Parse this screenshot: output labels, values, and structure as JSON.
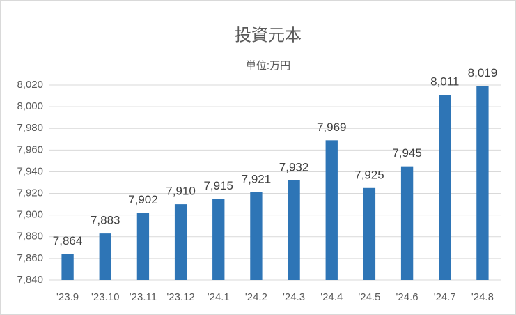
{
  "chart_data": {
    "type": "bar",
    "title": "投資元本",
    "subtitle": "単位:万円",
    "categories": [
      "'23.9",
      "'23.10",
      "'23.11",
      "'23.12",
      "'24.1",
      "'24.2",
      "'24.3",
      "'24.4",
      "'24.5",
      "'24.6",
      "'24.7",
      "'24.8"
    ],
    "values": [
      7864,
      7883,
      7902,
      7910,
      7915,
      7921,
      7932,
      7969,
      7925,
      7945,
      8011,
      8019
    ],
    "value_labels": [
      "7,864",
      "7,883",
      "7,902",
      "7,910",
      "7,915",
      "7,921",
      "7,932",
      "7,969",
      "7,925",
      "7,945",
      "8,011",
      "8,019"
    ],
    "color": "#2e75b6",
    "ylim": [
      7840,
      8020
    ],
    "yticks": [
      {
        "value": 7840,
        "label": "7,840"
      },
      {
        "value": 7860,
        "label": "7,860"
      },
      {
        "value": 7880,
        "label": "7,880"
      },
      {
        "value": 7900,
        "label": "7,900"
      },
      {
        "value": 7920,
        "label": "7,920"
      },
      {
        "value": 7940,
        "label": "7,940"
      },
      {
        "value": 7960,
        "label": "7,960"
      },
      {
        "value": 7980,
        "label": "7,980"
      },
      {
        "value": 8000,
        "label": "8,000"
      },
      {
        "value": 8020,
        "label": "8,020"
      }
    ],
    "grid": true
  }
}
